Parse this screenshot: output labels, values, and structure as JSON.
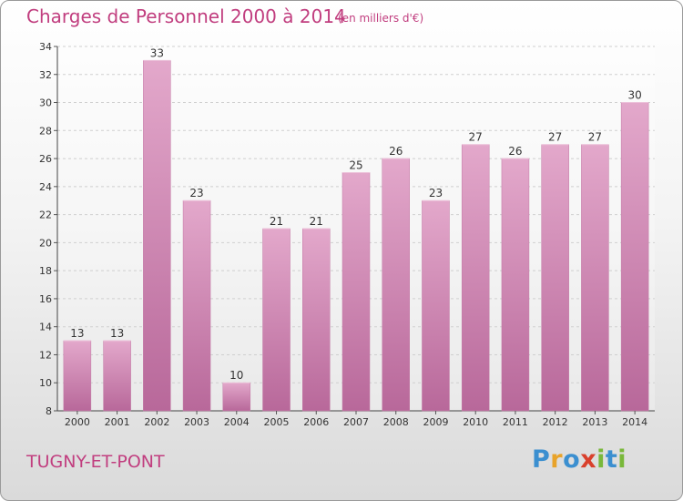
{
  "title": "Charges de Personnel 2000 à 2014",
  "subtitle": "(en milliers d'€)",
  "commune": "TUGNY-ET-PONT",
  "logo": {
    "letters": [
      {
        "ch": "P",
        "color": "#3b8fd0"
      },
      {
        "ch": "r",
        "color": "#e8a32a"
      },
      {
        "ch": "o",
        "color": "#3b8fd0"
      },
      {
        "ch": "x",
        "color": "#d9402c"
      },
      {
        "ch": "i",
        "color": "#79b83a"
      },
      {
        "ch": "t",
        "color": "#3b8fd0"
      },
      {
        "ch": "i",
        "color": "#79b83a"
      }
    ]
  },
  "colors": {
    "bar": "#d890b8",
    "bar_top": "#e3a8cb",
    "bar_bottom": "#b8689a",
    "accent": "#c13e7f"
  },
  "chart_data": {
    "type": "bar",
    "categories": [
      "2000",
      "2001",
      "2002",
      "2003",
      "2004",
      "2005",
      "2006",
      "2007",
      "2008",
      "2009",
      "2010",
      "2011",
      "2012",
      "2013",
      "2014"
    ],
    "values": [
      13,
      13,
      33,
      23,
      10,
      21,
      21,
      25,
      26,
      23,
      27,
      26,
      27,
      27,
      30
    ],
    "ylim": [
      8,
      34
    ],
    "yticks": [
      8,
      10,
      12,
      14,
      16,
      18,
      20,
      22,
      24,
      26,
      28,
      30,
      32,
      34
    ],
    "grid": true,
    "data_labels": true
  }
}
